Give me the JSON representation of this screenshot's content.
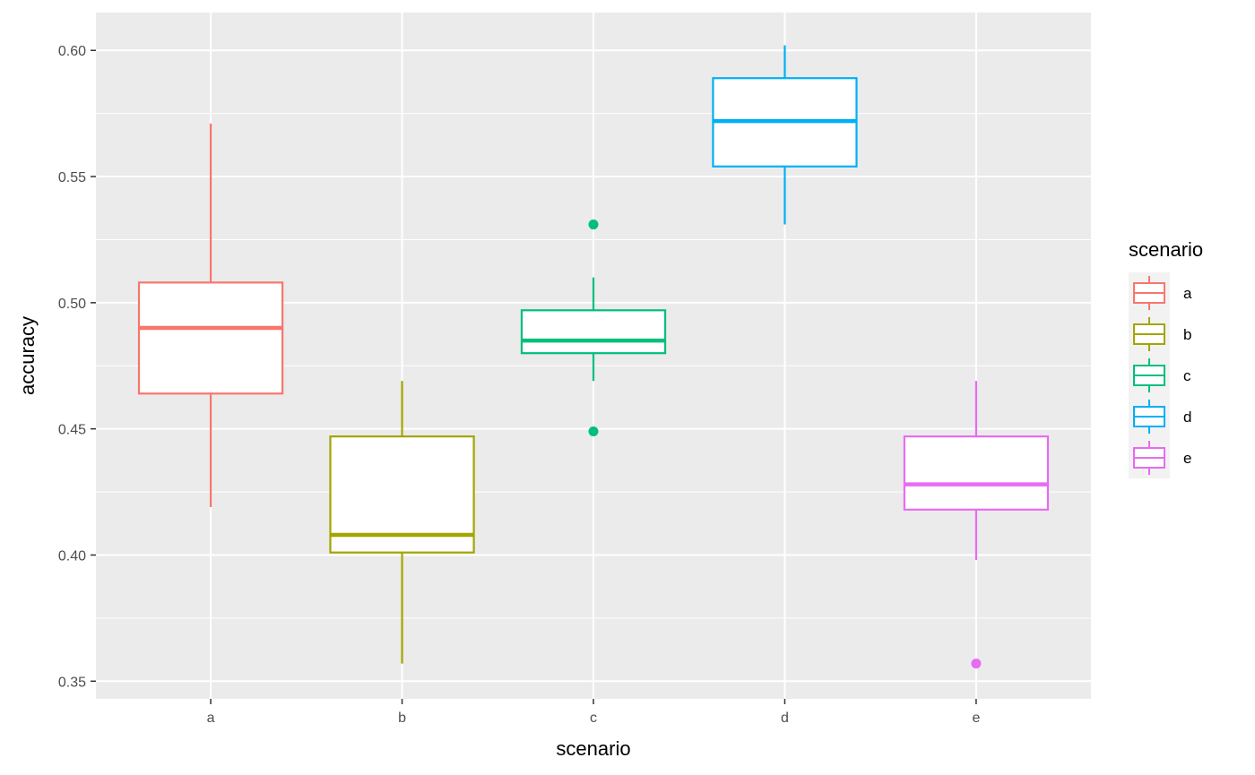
{
  "chart_data": {
    "type": "boxplot",
    "xlabel": "scenario",
    "ylabel": "accuracy",
    "categories": [
      "a",
      "b",
      "c",
      "d",
      "e"
    ],
    "ylim": [
      0.343,
      0.615
    ],
    "yticks": [
      0.35,
      0.4,
      0.45,
      0.5,
      0.55,
      0.6
    ],
    "ytick_labels": [
      "0.35",
      "0.40",
      "0.45",
      "0.50",
      "0.55",
      "0.60"
    ],
    "grid": true,
    "legend": {
      "title": "scenario",
      "position": "right",
      "entries": [
        "a",
        "b",
        "c",
        "d",
        "e"
      ]
    },
    "colors": {
      "a": "#F8766D",
      "b": "#A3A500",
      "c": "#00BF7D",
      "d": "#00B0F6",
      "e": "#E76BF3",
      "panel": "#EBEBEB",
      "grid": "#FFFFFF"
    },
    "boxes": [
      {
        "category": "a",
        "whisker_low": 0.419,
        "q1": 0.464,
        "median": 0.49,
        "q3": 0.508,
        "whisker_high": 0.571,
        "outliers": []
      },
      {
        "category": "b",
        "whisker_low": 0.357,
        "q1": 0.401,
        "median": 0.408,
        "q3": 0.447,
        "whisker_high": 0.469,
        "outliers": []
      },
      {
        "category": "c",
        "whisker_low": 0.469,
        "q1": 0.48,
        "median": 0.485,
        "q3": 0.497,
        "whisker_high": 0.51,
        "outliers": [
          0.531,
          0.449
        ]
      },
      {
        "category": "d",
        "whisker_low": 0.531,
        "q1": 0.554,
        "median": 0.572,
        "q3": 0.589,
        "whisker_high": 0.602,
        "outliers": []
      },
      {
        "category": "e",
        "whisker_low": 0.398,
        "q1": 0.418,
        "median": 0.428,
        "q3": 0.447,
        "whisker_high": 0.469,
        "outliers": [
          0.357
        ]
      }
    ]
  }
}
